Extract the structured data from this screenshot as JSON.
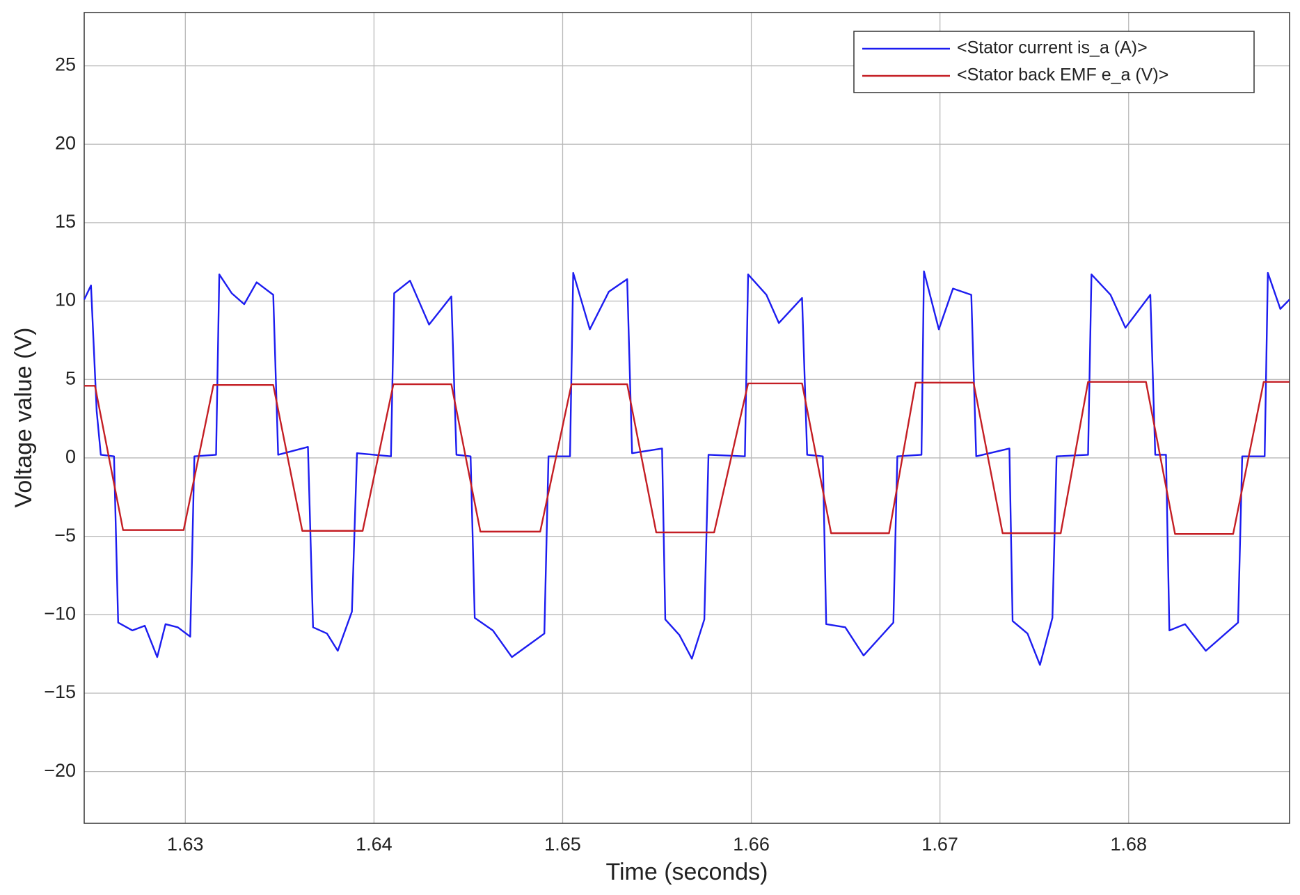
{
  "chart_data": {
    "type": "line",
    "xlabel": "Time (seconds)",
    "ylabel": "Voltage value (V)",
    "xlim": [
      1.62464,
      1.68853
    ],
    "ylim": [
      -23.3,
      28.4
    ],
    "xticks": [
      1.63,
      1.64,
      1.65,
      1.66,
      1.67,
      1.68
    ],
    "yticks": [
      {
        "value": -20,
        "label": "−20"
      },
      {
        "value": -15,
        "label": "−15"
      },
      {
        "value": -10,
        "label": "−10"
      },
      {
        "value": -5,
        "label": "−5"
      },
      0,
      5,
      10,
      15,
      20,
      25
    ],
    "grid": true,
    "legend": "upper right",
    "series": [
      {
        "name": "<Stator current is_a (A)>",
        "color": "#1c1cf0",
        "x": [
          1.62464,
          1.625,
          1.6253,
          1.62552,
          1.62622,
          1.62644,
          1.62719,
          1.62785,
          1.62851,
          1.62895,
          1.6296,
          1.63026,
          1.63048,
          1.63163,
          1.6318,
          1.63246,
          1.63312,
          1.63378,
          1.63466,
          1.63492,
          1.6365,
          1.63677,
          1.63751,
          1.63808,
          1.63883,
          1.6391,
          1.6409,
          1.64107,
          1.64191,
          1.64292,
          1.6441,
          1.64437,
          1.64512,
          1.64534,
          1.6463,
          1.64731,
          1.64903,
          1.64925,
          1.65039,
          1.65056,
          1.65144,
          1.65245,
          1.65342,
          1.65368,
          1.65527,
          1.65544,
          1.65619,
          1.65685,
          1.65751,
          1.65773,
          1.65966,
          1.65983,
          1.6608,
          1.66146,
          1.66269,
          1.66296,
          1.66379,
          1.66397,
          1.66498,
          1.66595,
          1.66753,
          1.66774,
          1.66902,
          1.66915,
          1.66994,
          1.67069,
          1.67166,
          1.67192,
          1.67368,
          1.67385,
          1.67464,
          1.6753,
          1.67596,
          1.67618,
          1.67785,
          1.67803,
          1.67904,
          1.67983,
          1.68115,
          1.68141,
          1.68198,
          1.68216,
          1.68299,
          1.68409,
          1.6858,
          1.68602,
          1.68721,
          1.68738,
          1.68804,
          1.68853
        ],
        "values": [
          10.1,
          11.0,
          3,
          0.2,
          0.1,
          -10.5,
          -11.0,
          -10.7,
          -12.7,
          -10.6,
          -10.8,
          -11.4,
          0.1,
          0.2,
          11.7,
          10.5,
          9.8,
          11.2,
          10.4,
          0.2,
          0.7,
          -10.8,
          -11.2,
          -12.3,
          -9.8,
          0.3,
          0.1,
          10.5,
          11.3,
          8.5,
          10.3,
          0.2,
          0.1,
          -10.2,
          -11.0,
          -12.7,
          -11.2,
          0.1,
          0.1,
          11.8,
          8.2,
          10.6,
          11.4,
          0.3,
          0.6,
          -10.3,
          -11.3,
          -12.8,
          -10.3,
          0.2,
          0.1,
          11.7,
          10.4,
          8.6,
          10.2,
          0.2,
          0.1,
          -10.6,
          -10.8,
          -12.6,
          -10.5,
          0.1,
          0.2,
          11.9,
          8.2,
          10.8,
          10.4,
          0.1,
          0.6,
          -10.4,
          -11.2,
          -13.2,
          -10.2,
          0.1,
          0.2,
          11.7,
          10.4,
          8.3,
          10.4,
          0.2,
          0.2,
          -11.0,
          -10.6,
          -12.3,
          -10.5,
          0.1,
          0.1,
          11.8,
          9.5,
          10.1
        ]
      },
      {
        "name": "<Stator back EMF e_a (V)>",
        "color": "#c41e24",
        "x": [
          1.62464,
          1.62521,
          1.6267,
          1.62991,
          1.63149,
          1.63466,
          1.6362,
          1.6394,
          1.64103,
          1.6441,
          1.64564,
          1.64881,
          1.65047,
          1.65342,
          1.65496,
          1.65803,
          1.65983,
          1.66269,
          1.66423,
          1.6673,
          1.66871,
          1.67178,
          1.67332,
          1.6764,
          1.67785,
          1.68092,
          1.68246,
          1.68554,
          1.68716,
          1.68852
        ],
        "values": [
          4.6,
          4.6,
          -4.6,
          -4.6,
          4.65,
          4.65,
          -4.65,
          -4.65,
          4.7,
          4.7,
          -4.7,
          -4.7,
          4.7,
          4.7,
          -4.75,
          -4.75,
          4.75,
          4.75,
          -4.8,
          -4.8,
          4.8,
          4.8,
          -4.8,
          -4.8,
          4.85,
          4.85,
          -4.85,
          -4.85,
          4.85,
          4.85
        ]
      }
    ]
  }
}
